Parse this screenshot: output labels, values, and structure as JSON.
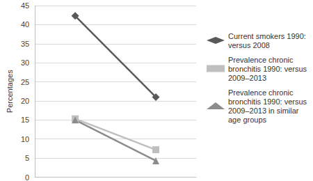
{
  "chart_data": {
    "type": "line",
    "y_label": "Percentages",
    "categories": [
      null,
      null
    ],
    "series": [
      {
        "name": "Current smokers 1990: versus 2008",
        "color": "#595959",
        "marker": "diamond",
        "values": [
          42.3,
          21.0
        ]
      },
      {
        "name": "Prevalence chronic bronchitis 1990: versus 2009–2013",
        "color": "#bfbfbf",
        "marker": "square",
        "values": [
          15.3,
          7.2
        ]
      },
      {
        "name": "Prevalence chronic bronchitis 1990: versus 2009–2013 in similar age groups",
        "color": "#8c8c8c",
        "marker": "triangle",
        "values": [
          15.0,
          4.3
        ]
      }
    ],
    "ylim": [
      0,
      45
    ],
    "yticks": [
      0,
      5,
      10,
      15,
      20,
      25,
      30,
      35,
      40,
      45
    ],
    "grid": true,
    "legend": "right",
    "tick_labels": "y"
  }
}
